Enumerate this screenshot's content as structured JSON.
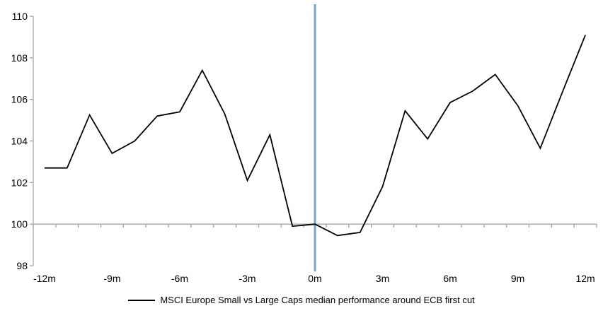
{
  "chart_data": {
    "type": "line",
    "title": "",
    "legend": "MSCI Europe Small vs Large Caps median performance around ECB first cut",
    "x": [
      -12,
      -11,
      -10,
      -9,
      -8,
      -7,
      -6,
      -5,
      -4,
      -3,
      -2,
      -1,
      0,
      1,
      2,
      3,
      4,
      5,
      6,
      7,
      8,
      9,
      10,
      11,
      12
    ],
    "values": [
      102.7,
      102.7,
      105.25,
      103.4,
      104.0,
      105.2,
      105.4,
      107.4,
      105.3,
      102.1,
      104.3,
      99.9,
      100.0,
      99.45,
      99.6,
      101.8,
      105.45,
      104.1,
      105.85,
      106.4,
      107.2,
      105.7,
      103.65,
      106.4,
      109.1
    ],
    "x_tick_months": [
      -12,
      -9,
      -6,
      -3,
      0,
      3,
      6,
      9,
      12
    ],
    "x_tick_labels": [
      "-12m",
      "-9m",
      "-6m",
      "-3m",
      "0m",
      "3m",
      "6m",
      "9m",
      "12m"
    ],
    "y_ticks": [
      98,
      100,
      102,
      104,
      106,
      108,
      110
    ],
    "ylim": [
      98,
      110
    ],
    "baseline_value": 100,
    "event_line_month": 0,
    "grid": "baseline-only",
    "legend_position": "bottom-center",
    "colors": {
      "series": "#000000",
      "event_line": "#74a5ce",
      "axis": "#a6a6a6",
      "text": "#000000",
      "background": "#ffffff"
    }
  }
}
